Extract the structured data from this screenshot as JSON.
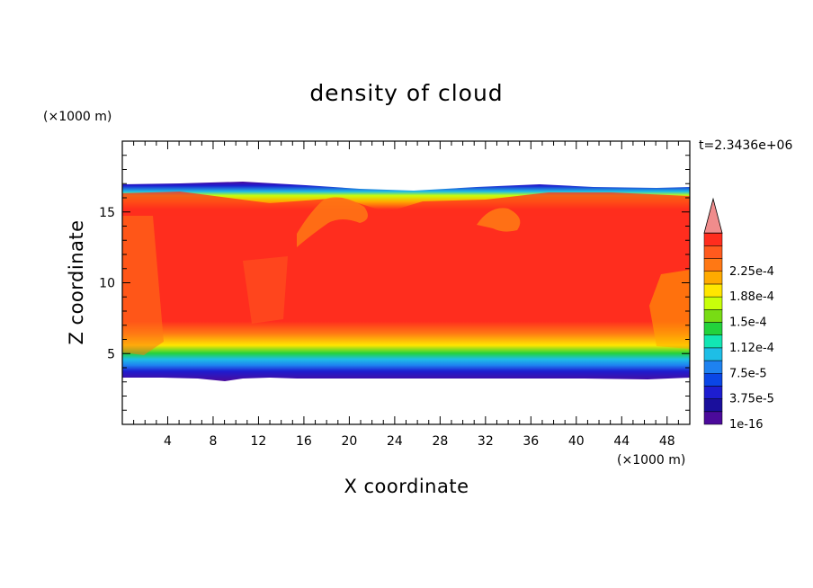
{
  "chart_data": {
    "type": "heatmap",
    "title": "density of cloud",
    "xlabel": "X coordinate",
    "ylabel": "Z coordinate",
    "x_unit": "(×1000 m)",
    "y_unit": "(×1000 m)",
    "time_label": "t=2.3436e+06",
    "xlim": [
      0,
      50
    ],
    "ylim": [
      0,
      20
    ],
    "x_ticks": [
      4,
      8,
      12,
      16,
      20,
      24,
      28,
      32,
      36,
      40,
      44,
      48
    ],
    "y_ticks": [
      5,
      10,
      15
    ],
    "colorbar": {
      "colors": [
        "#4b0a9b",
        "#1a0f9c",
        "#1d1dd0",
        "#0a46e6",
        "#1e82f0",
        "#1ebee6",
        "#12e6b4",
        "#23d23c",
        "#78dc14",
        "#c8ff0a",
        "#ffe600",
        "#ffaa00",
        "#ff7814",
        "#ff5a1e",
        "#ff2d1e",
        "#f08c8c"
      ],
      "labels": [
        {
          "value": "1e-16",
          "level": 0
        },
        {
          "value": "3.75e-5",
          "level": 2
        },
        {
          "value": "7.5e-5",
          "level": 4
        },
        {
          "value": "1.12e-4",
          "level": 6
        },
        {
          "value": "1.5e-4",
          "level": 8
        },
        {
          "value": "1.88e-4",
          "level": 10
        },
        {
          "value": "2.25e-4",
          "level": 12
        }
      ]
    },
    "approx_layers": [
      {
        "z_range": [
          3.5,
          4.5
        ],
        "level": "lowest"
      },
      {
        "z_range": [
          5.5,
          8
        ],
        "level": "mid"
      },
      {
        "z_range": [
          8,
          15
        ],
        "level": "max"
      },
      {
        "z_range": [
          15,
          17
        ],
        "level": "decreasing to lowest"
      }
    ]
  }
}
